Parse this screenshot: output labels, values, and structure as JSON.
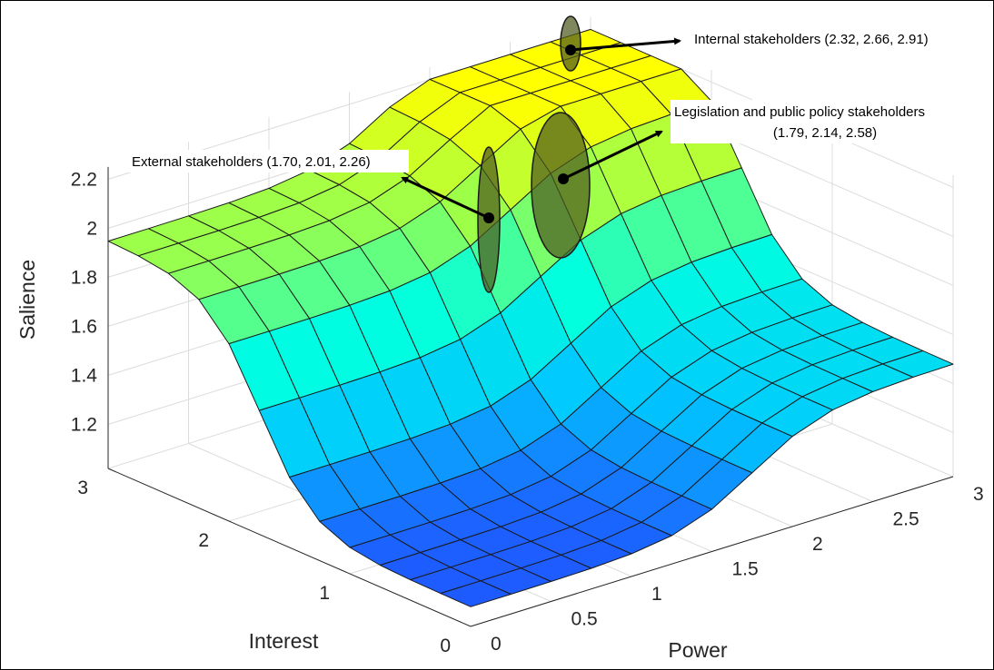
{
  "chart_data": {
    "type": "surface",
    "xlabel": "Power",
    "ylabel": "Interest",
    "zlabel": "Salience",
    "x_ticks": [
      "0",
      "0.5",
      "1",
      "1.5",
      "2",
      "2.5",
      "3"
    ],
    "y_ticks": [
      "0",
      "1",
      "2",
      "3"
    ],
    "z_ticks": [
      "1.2",
      "1.4",
      "1.6",
      "1.8",
      "2",
      "2.2"
    ],
    "xlim": [
      0,
      3
    ],
    "ylim": [
      0,
      3
    ],
    "zlim": [
      1.1,
      2.25
    ],
    "grid": true,
    "colormap": [
      "#1e5bff",
      "#00c8ff",
      "#00ffe0",
      "#95ff50",
      "#ffff00"
    ],
    "surface": {
      "description_of_values": "Salience z over a 13x13 grid of Power (x) and Interest (y)",
      "grid_x": [
        0,
        0.25,
        0.5,
        0.75,
        1,
        1.25,
        1.5,
        1.75,
        2,
        2.25,
        2.5,
        2.75,
        3
      ],
      "grid_y": [
        0,
        0.25,
        0.5,
        0.75,
        1,
        1.25,
        1.5,
        1.75,
        2,
        2.25,
        2.5,
        2.75,
        3
      ],
      "z_min": 1.1,
      "z_power_step": 0.38,
      "z_interest_step": 0.85,
      "step_center": 1.75,
      "step_width": 0.22,
      "z_max": 2.2
    },
    "annotations": [
      {
        "label": "Internal stakeholders (2.32, 2.66, 2.91)",
        "point": [
          2.66,
          2.91,
          2.2
        ],
        "range": [
          2.32,
          2.91
        ]
      },
      {
        "label_line1": "Legislation and public policy stakeholders",
        "label_line2": "(1.79, 2.14, 2.58)",
        "point": [
          2.14,
          2.14,
          2.06
        ],
        "range": [
          1.79,
          2.58
        ]
      },
      {
        "label": "External stakeholders (1.70, 2.01, 2.26)",
        "point": [
          2.01,
          1.75,
          1.94
        ],
        "range": [
          1.7,
          2.26
        ]
      }
    ]
  }
}
